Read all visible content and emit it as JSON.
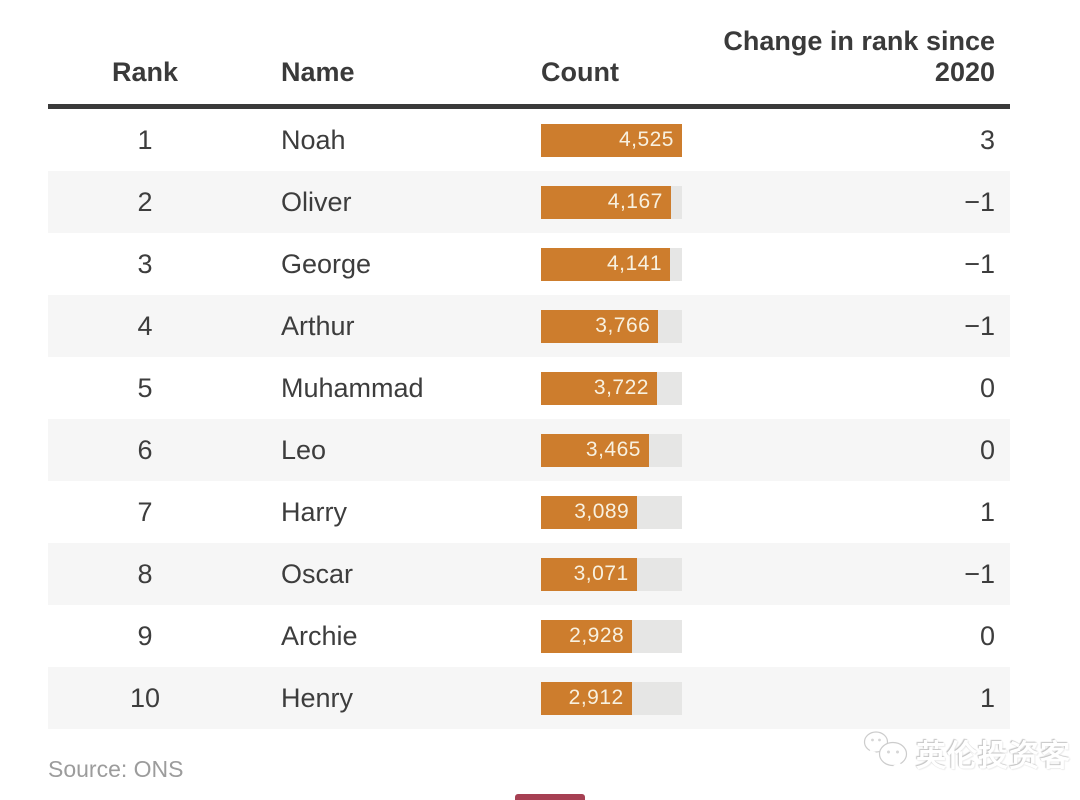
{
  "header": {
    "columns": [
      "Rank",
      "Name",
      "Count",
      "Change in rank since\n2020"
    ]
  },
  "table": {
    "bar_max": 4525,
    "rows": [
      {
        "rank": "1",
        "name": "Noah",
        "count": 4525,
        "count_label": "4,525",
        "change": "3"
      },
      {
        "rank": "2",
        "name": "Oliver",
        "count": 4167,
        "count_label": "4,167",
        "change": "−1"
      },
      {
        "rank": "3",
        "name": "George",
        "count": 4141,
        "count_label": "4,141",
        "change": "−1"
      },
      {
        "rank": "4",
        "name": "Arthur",
        "count": 3766,
        "count_label": "3,766",
        "change": "−1"
      },
      {
        "rank": "5",
        "name": "Muhammad",
        "count": 3722,
        "count_label": "3,722",
        "change": "0"
      },
      {
        "rank": "6",
        "name": "Leo",
        "count": 3465,
        "count_label": "3,465",
        "change": "0"
      },
      {
        "rank": "7",
        "name": "Harry",
        "count": 3089,
        "count_label": "3,089",
        "change": "1"
      },
      {
        "rank": "8",
        "name": "Oscar",
        "count": 3071,
        "count_label": "3,071",
        "change": "−1"
      },
      {
        "rank": "9",
        "name": "Archie",
        "count": 2928,
        "count_label": "2,928",
        "change": "0"
      },
      {
        "rank": "10",
        "name": "Henry",
        "count": 2912,
        "count_label": "2,912",
        "change": "1"
      }
    ]
  },
  "footer": {
    "source": "Source: ONS"
  },
  "watermark": {
    "text": "英伦投资客",
    "icon": "wechat-chat-bubbles"
  },
  "colors": {
    "bar": "#cd7d2d",
    "track": "#e6e6e5",
    "zebra": "#f6f6f6",
    "rule": "#3a3a3a",
    "text": "#3d3d3d",
    "bar_label": "#f8f1e0",
    "muted": "#9c9c9c",
    "red": "#a64053"
  },
  "chart_data": {
    "type": "table",
    "title": "",
    "columns": [
      "Rank",
      "Name",
      "Count",
      "Change in rank since 2020"
    ],
    "rows": [
      [
        1,
        "Noah",
        4525,
        3
      ],
      [
        2,
        "Oliver",
        4167,
        -1
      ],
      [
        3,
        "George",
        4141,
        -1
      ],
      [
        4,
        "Arthur",
        3766,
        -1
      ],
      [
        5,
        "Muhammad",
        3722,
        0
      ],
      [
        6,
        "Leo",
        3465,
        0
      ],
      [
        7,
        "Harry",
        3089,
        1
      ],
      [
        8,
        "Oscar",
        3071,
        -1
      ],
      [
        9,
        "Archie",
        2928,
        0
      ],
      [
        10,
        "Henry",
        2912,
        1
      ]
    ],
    "bar_column": "Count",
    "bar_type": "inline-bar",
    "bar_range": [
      0,
      4525
    ],
    "bar_color": "#cd7d2d",
    "source": "Source: ONS"
  }
}
